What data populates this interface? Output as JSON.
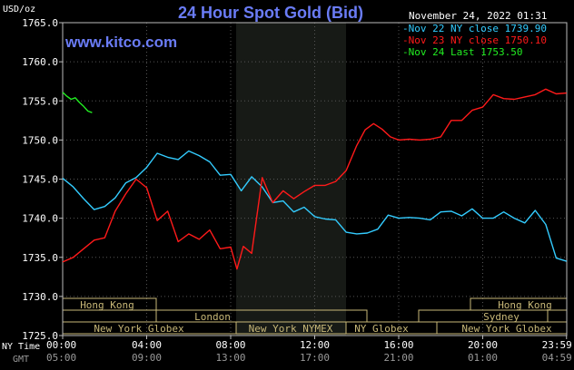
{
  "chart_data": {
    "type": "line",
    "title": "24 Hour Spot Gold (Bid)",
    "unit_label": "USD/oz",
    "site": "www.kitco.com",
    "timestamp": "November 24, 2022 01:31",
    "ylim": [
      1725.0,
      1765.0
    ],
    "y_ticks": [
      "1765.0",
      "1760.0",
      "1755.0",
      "1750.0",
      "1745.0",
      "1740.0",
      "1735.0",
      "1730.0",
      "1725.0"
    ],
    "x_axis": {
      "ny_label": "NY Time",
      "gmt_label": "GMT",
      "ny_ticks": [
        "00:00",
        "04:00",
        "08:00",
        "12:00",
        "16:00",
        "20:00",
        "23:59"
      ],
      "gmt_ticks": [
        "05:00",
        "09:00",
        "13:00",
        "17:00",
        "21:00",
        "01:00",
        "04:59"
      ]
    },
    "legend": {
      "placement": "top-right",
      "items": [
        {
          "text": "Nov 22 NY close 1739.90",
          "color": "#33ccff"
        },
        {
          "text": "Nov 23 NY close 1750.10",
          "color": "#ff1a1a"
        },
        {
          "text": "Nov 24 Last 1753.50",
          "color": "#22ee22"
        }
      ]
    },
    "sessions": {
      "hong_kong": "Hong Kong",
      "london": "London",
      "new_york_globex": "New York Globex",
      "new_york_nymex": "New York NYMEX",
      "ny_globex": "NY Globex",
      "sydney": "Sydney"
    },
    "x_hours_range": [
      0,
      24
    ],
    "series": [
      {
        "name": "Nov 22 NY close 1739.90",
        "color": "#33ccff",
        "x": [
          0,
          0.5,
          1.0,
          1.5,
          2.0,
          2.5,
          3.0,
          3.5,
          4.0,
          4.5,
          5.0,
          5.5,
          6.0,
          6.5,
          7.0,
          7.5,
          8.0,
          8.5,
          9.0,
          9.5,
          10.0,
          10.5,
          11.0,
          11.5,
          12.0,
          12.5,
          13.0,
          13.5,
          14.0,
          14.5,
          15.0,
          15.5,
          16.0,
          16.5,
          17.0,
          17.5,
          18.0,
          18.5,
          19.0,
          19.5,
          20.0,
          20.5,
          21.0,
          21.5,
          22.0,
          22.5,
          23.0,
          23.5,
          23.99
        ],
        "y": [
          1745.1,
          1744.0,
          1742.5,
          1741.1,
          1741.5,
          1742.6,
          1744.5,
          1745.2,
          1746.5,
          1748.3,
          1747.8,
          1747.5,
          1748.6,
          1748.0,
          1747.2,
          1745.5,
          1745.6,
          1743.5,
          1745.3,
          1744.0,
          1742.0,
          1742.2,
          1740.8,
          1741.4,
          1740.2,
          1739.9,
          1739.8,
          1738.2,
          1738.0,
          1738.1,
          1738.6,
          1740.4,
          1740.0,
          1740.1,
          1740.0,
          1739.8,
          1740.8,
          1740.9,
          1740.3,
          1741.2,
          1740.0,
          1740.0,
          1740.8,
          1740.0,
          1739.4,
          1741.0,
          1739.2,
          1734.9,
          1734.5
        ]
      },
      {
        "name": "Nov 23 NY close 1750.10",
        "color": "#ff1a1a",
        "x": [
          0,
          0.5,
          1.0,
          1.5,
          2.0,
          2.5,
          3.0,
          3.5,
          4.0,
          4.5,
          5.0,
          5.5,
          6.0,
          6.5,
          7.0,
          7.5,
          8.0,
          8.3,
          8.6,
          9.0,
          9.5,
          10.0,
          10.5,
          11.0,
          11.5,
          12.0,
          12.5,
          13.0,
          13.5,
          14.0,
          14.4,
          14.8,
          15.2,
          15.6,
          16.0,
          16.5,
          17.0,
          17.5,
          18.0,
          18.5,
          19.0,
          19.5,
          20.0,
          20.5,
          21.0,
          21.5,
          22.0,
          22.5,
          23.0,
          23.5,
          23.99
        ],
        "y": [
          1734.4,
          1735.0,
          1736.1,
          1737.2,
          1737.5,
          1740.9,
          1743.1,
          1745.0,
          1743.9,
          1739.7,
          1740.9,
          1737.0,
          1738.0,
          1737.3,
          1738.5,
          1736.1,
          1736.3,
          1733.5,
          1736.4,
          1735.5,
          1745.2,
          1742.0,
          1743.5,
          1742.5,
          1743.4,
          1744.2,
          1744.2,
          1744.7,
          1746.1,
          1749.3,
          1751.3,
          1752.1,
          1751.4,
          1750.4,
          1750.0,
          1750.1,
          1750.0,
          1750.1,
          1750.4,
          1752.5,
          1752.5,
          1753.8,
          1754.2,
          1755.8,
          1755.3,
          1755.2,
          1755.5,
          1755.8,
          1756.5,
          1755.9,
          1756.0
        ]
      },
      {
        "name": "Nov 24 Last 1753.50",
        "color": "#22ee22",
        "x": [
          0,
          0.2,
          0.4,
          0.6,
          0.8,
          1.0,
          1.2,
          1.4
        ],
        "y": [
          1756.1,
          1755.6,
          1755.2,
          1755.4,
          1754.8,
          1754.3,
          1753.7,
          1753.5
        ]
      }
    ]
  }
}
